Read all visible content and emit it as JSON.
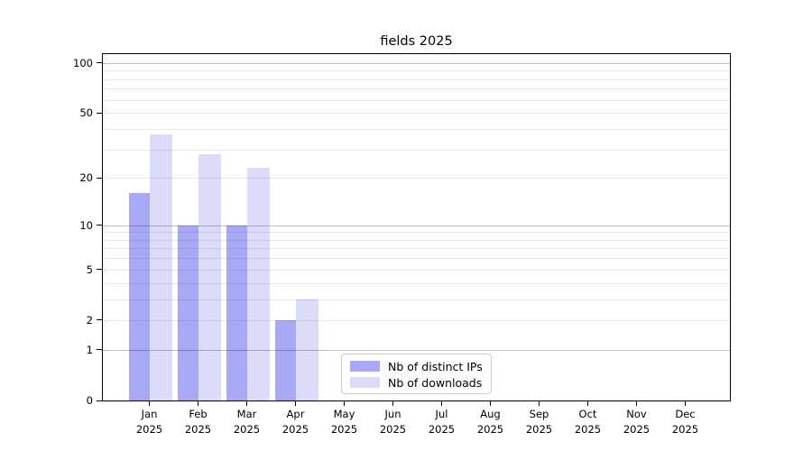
{
  "title": "fields 2025",
  "y_axis": {
    "tick_labels": [
      100,
      50,
      20,
      10,
      5,
      2,
      1,
      0
    ]
  },
  "x_axis": {
    "months": [
      "Jan",
      "Feb",
      "Mar",
      "Apr",
      "May",
      "Jun",
      "Jul",
      "Aug",
      "Sep",
      "Oct",
      "Nov",
      "Dec"
    ],
    "year": "2025"
  },
  "chart_data": {
    "type": "bar",
    "title": "fields 2025",
    "categories": [
      "Jan 2025",
      "Feb 2025",
      "Mar 2025",
      "Apr 2025",
      "May 2025",
      "Jun 2025",
      "Jul 2025",
      "Aug 2025",
      "Sep 2025",
      "Oct 2025",
      "Nov 2025",
      "Dec 2025"
    ],
    "series": [
      {
        "name": "Nb of distinct IPs",
        "color": "#a8a8f6",
        "values": [
          16,
          10,
          10,
          2,
          0,
          0,
          0,
          0,
          0,
          0,
          0,
          0
        ]
      },
      {
        "name": "Nb of downloads",
        "color": "#dbdbfa",
        "values": [
          37,
          28,
          23,
          3,
          0,
          0,
          0,
          0,
          0,
          0,
          0,
          0
        ]
      }
    ],
    "xlabel": "",
    "ylabel": "",
    "y_scale": "log10(1+x)",
    "y_ticks": [
      0,
      1,
      2,
      5,
      10,
      20,
      50,
      100
    ],
    "y_major_gridlines": [
      1,
      10,
      100
    ],
    "y_minor_gridlines": [
      2,
      3,
      4,
      5,
      6,
      7,
      8,
      9,
      20,
      30,
      40,
      50,
      60,
      70,
      80,
      90
    ],
    "ylim": [
      0,
      113
    ],
    "grid": "horizontal",
    "legend_position": "inside lower-center"
  }
}
